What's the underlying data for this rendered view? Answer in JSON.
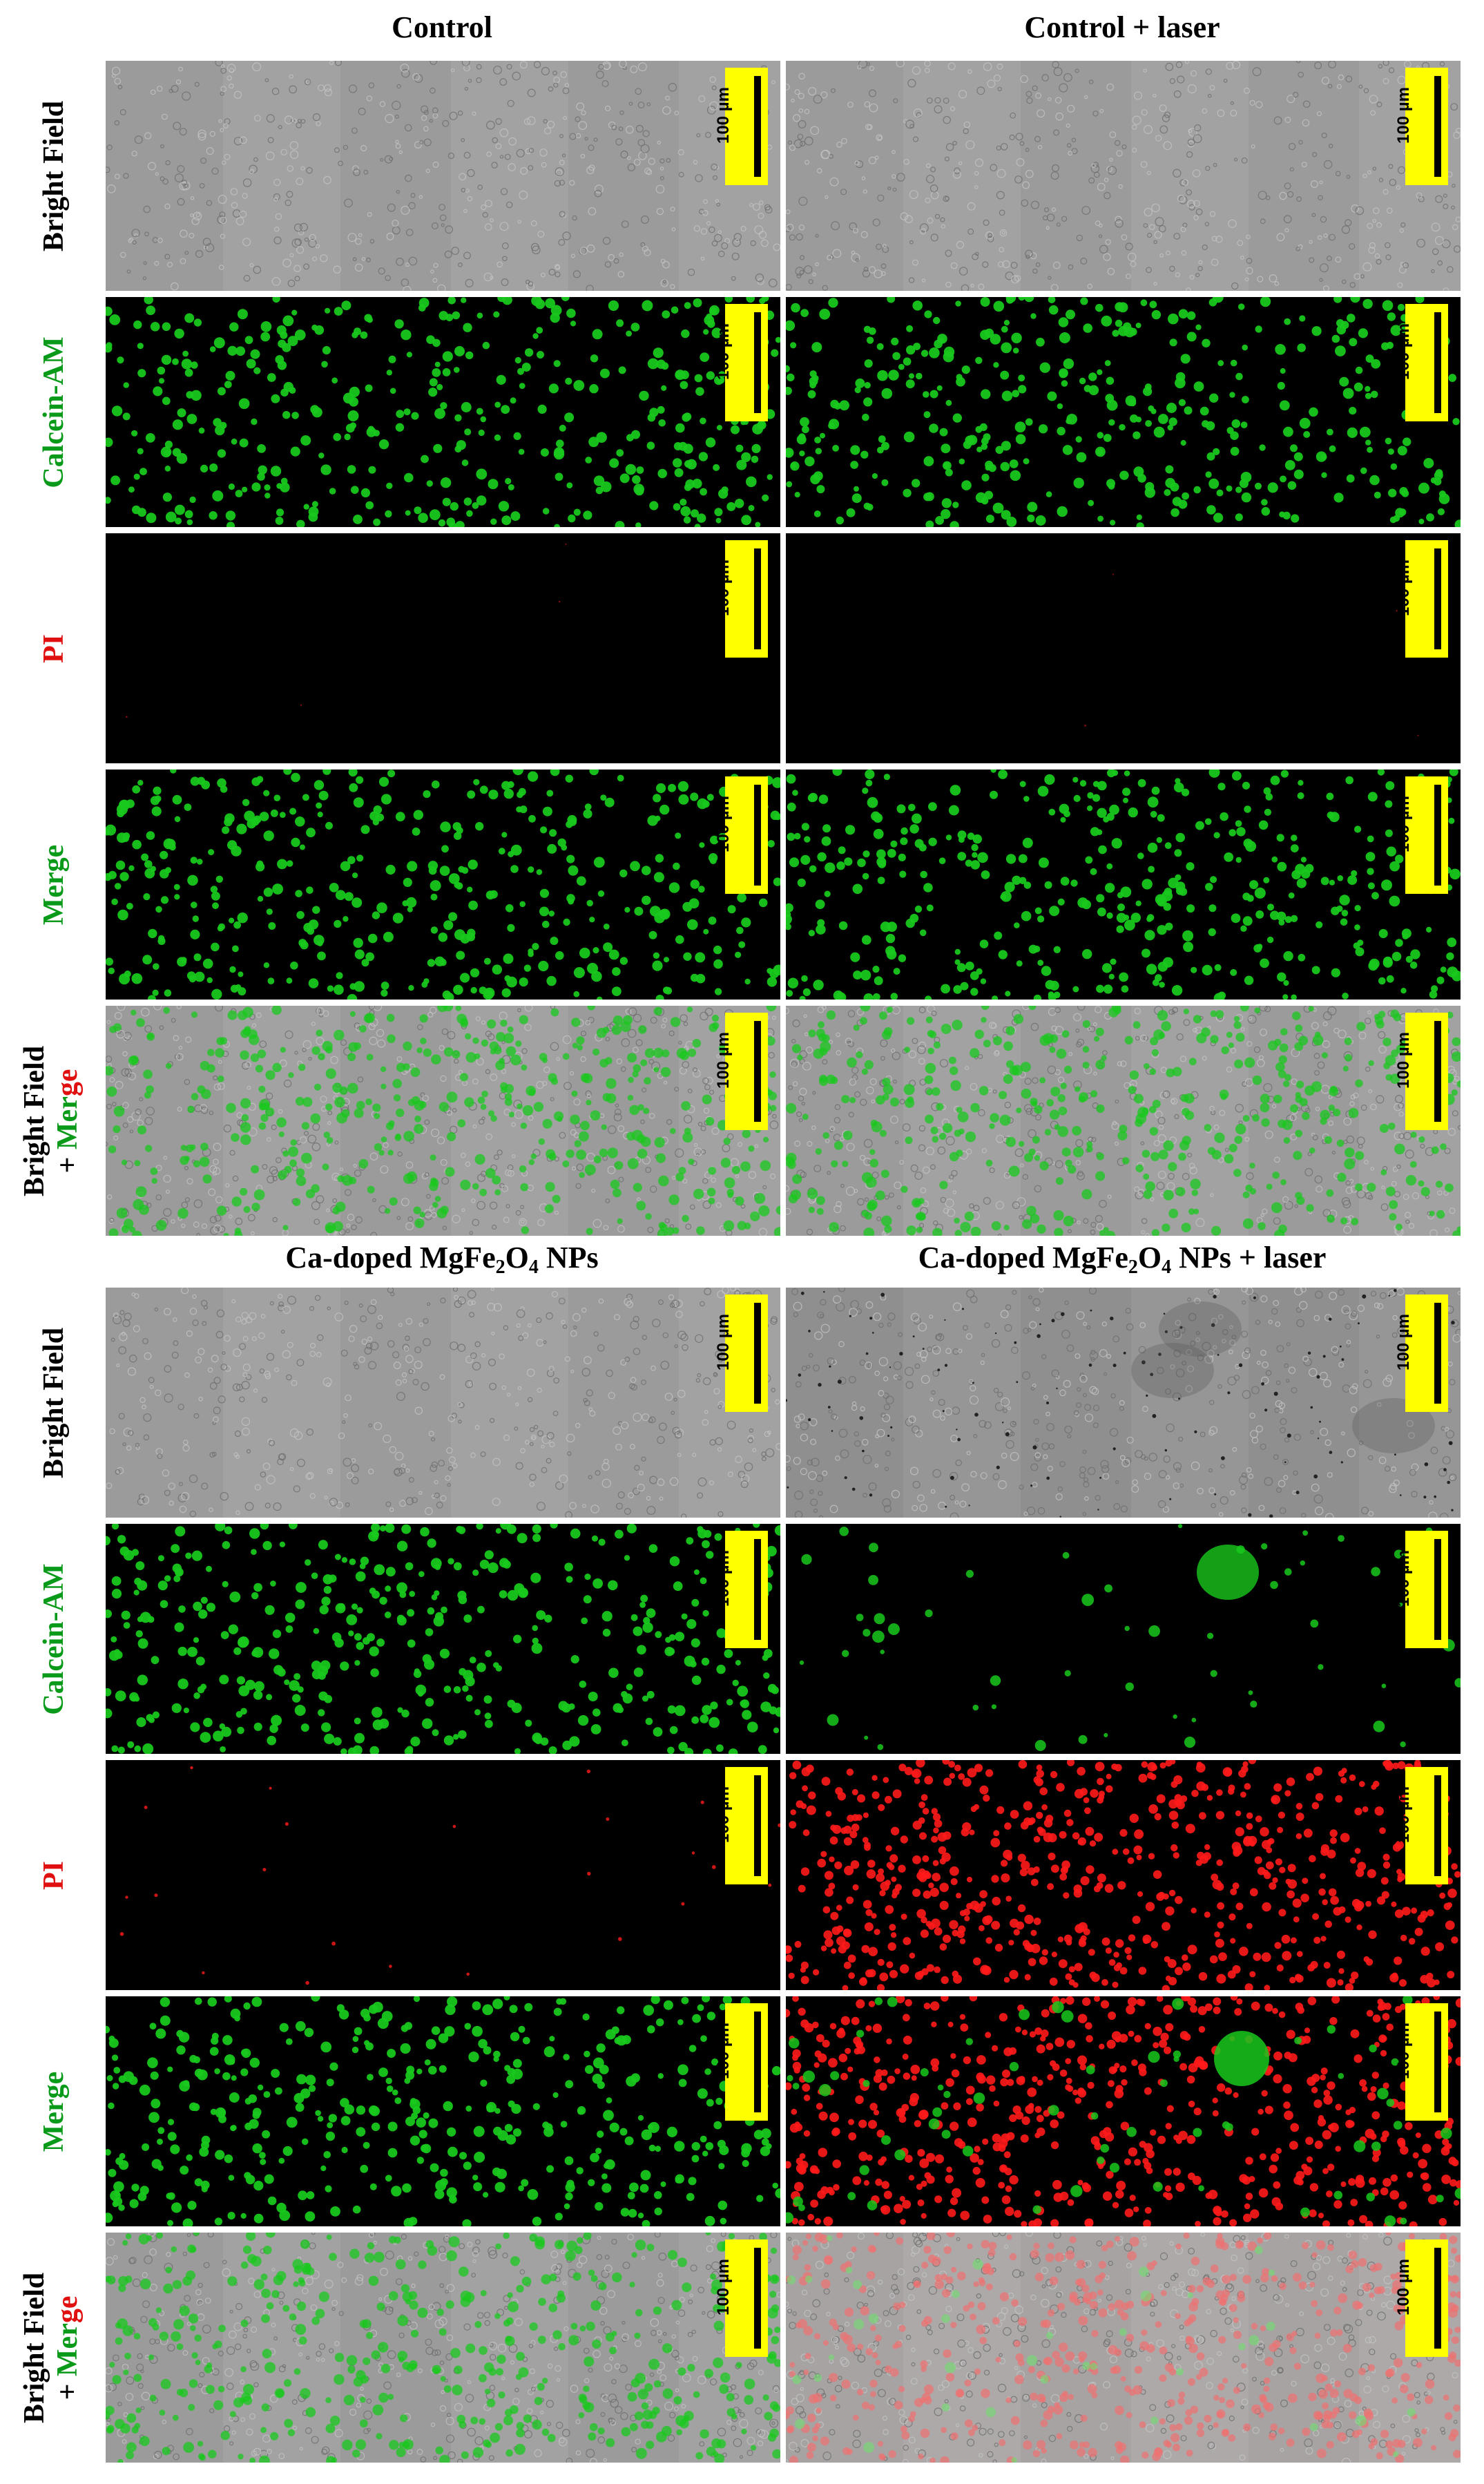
{
  "sections": [
    {
      "columns": [
        {
          "title": "Control"
        },
        {
          "title": "Control + laser"
        }
      ],
      "panels": [
        [
          "bf",
          "green",
          "black",
          "green",
          "bfgreen"
        ],
        [
          "bf",
          "green",
          "black",
          "green",
          "bfgreen"
        ]
      ]
    },
    {
      "columns": [
        {
          "title_main": "Ca-doped MgFe",
          "title_sub1": "2",
          "title_mid": "O",
          "title_sub2": "4",
          "title_end": " NPs"
        },
        {
          "title_main": "Ca-doped MgFe",
          "title_sub1": "2",
          "title_mid": "O",
          "title_sub2": "4",
          "title_end": " NPs + laser"
        }
      ],
      "panels": [
        [
          "bf",
          "green",
          "sparsered",
          "green",
          "bfgreen"
        ],
        [
          "bfdark",
          "sparsegreen",
          "red",
          "redgreen",
          "bfred"
        ]
      ]
    }
  ],
  "row_labels": [
    {
      "lines": [
        {
          "text": "Bright Field",
          "color": "black"
        }
      ]
    },
    {
      "lines": [
        {
          "text": "Calcein-AM",
          "color": "green"
        }
      ]
    },
    {
      "lines": [
        {
          "text": "PI",
          "color": "red"
        }
      ]
    },
    {
      "lines": [
        {
          "text": "Merge",
          "color": "green"
        }
      ]
    },
    {
      "lines": [
        {
          "text": "Bright Field",
          "color": "black"
        },
        {
          "text_plus": "+ ",
          "text": "Merge",
          "color": "green",
          "tail_color": "red"
        }
      ]
    }
  ],
  "bf_merge_label": {
    "line1": "Bright Field",
    "line2_plus": "+",
    "line2_merge": "Merge",
    "line2_tail": "Merge"
  },
  "scale_bar_text": "100 µm",
  "colors": {
    "green": "#18c81c",
    "red": "#ff1a1a",
    "label_green": "#0a9a1a",
    "label_red": "#e01010",
    "scale_bg": "#ffff00"
  }
}
